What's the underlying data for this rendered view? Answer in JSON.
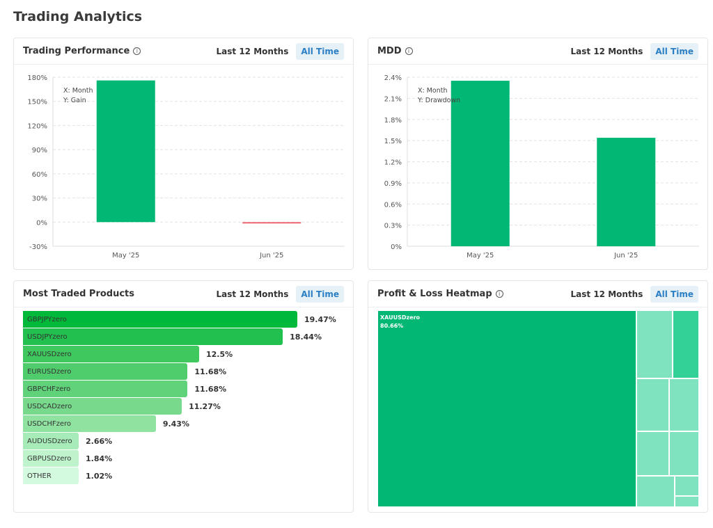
{
  "page_title": "Trading Analytics",
  "tabs": {
    "last12": "Last 12 Months",
    "all": "All Time"
  },
  "performance": {
    "title": "Trading Performance",
    "info_icon": "info-icon"
  },
  "mdd": {
    "title": "MDD",
    "info_icon": "info-icon"
  },
  "products": {
    "title": "Most Traded Products"
  },
  "heatmap": {
    "title": "Profit & Loss Heatmap",
    "info_icon": "info-icon",
    "top_label": "XAUUSDzero",
    "top_value": "80.66%"
  },
  "chart_data": [
    {
      "type": "bar",
      "title": "Trading Performance",
      "categories": [
        "May '25",
        "Jun '25"
      ],
      "values": [
        176,
        -1
      ],
      "ylim": [
        -30,
        180
      ],
      "yticks": [
        "180%",
        "150%",
        "120%",
        "90%",
        "60%",
        "30%",
        "0%",
        "-30%"
      ],
      "legend": [
        "X: Month",
        "Y: Gain"
      ],
      "colors": {
        "positive": "#00b874",
        "negative": "#f06470"
      },
      "grid": true
    },
    {
      "type": "bar",
      "title": "MDD",
      "categories": [
        "May '25",
        "Jun '25"
      ],
      "values": [
        2.35,
        1.54
      ],
      "ylim": [
        0,
        2.4
      ],
      "yticks": [
        "2.4%",
        "2.1%",
        "1.8%",
        "1.5%",
        "1.2%",
        "0.9%",
        "0.6%",
        "0.3%",
        "0%"
      ],
      "legend": [
        "X: Month",
        "Y: Drawdown"
      ],
      "colors": {
        "positive": "#00b874"
      },
      "grid": true
    },
    {
      "type": "bar",
      "orientation": "horizontal",
      "title": "Most Traded Products",
      "categories": [
        "GBPJPYzero",
        "USDJPYzero",
        "XAUUSDzero",
        "EURUSDzero",
        "GBPCHFzero",
        "USDCADzero",
        "USDCHFzero",
        "AUDUSDzero",
        "GBPUSDzero",
        "OTHER"
      ],
      "values": [
        19.47,
        18.44,
        12.5,
        11.68,
        11.68,
        11.27,
        9.43,
        2.66,
        1.84,
        1.02
      ],
      "labels": [
        "19.47%",
        "18.44%",
        "12.5%",
        "11.68%",
        "11.68%",
        "11.27%",
        "9.43%",
        "2.66%",
        "1.84%",
        "1.02%"
      ],
      "colors": [
        "#00b93a",
        "#22c04f",
        "#3fc85e",
        "#4fcc6b",
        "#5fd27a",
        "#78d98c",
        "#8fe2a0",
        "#a7ecb8",
        "#bff3cc",
        "#d3fadf"
      ]
    }
  ]
}
